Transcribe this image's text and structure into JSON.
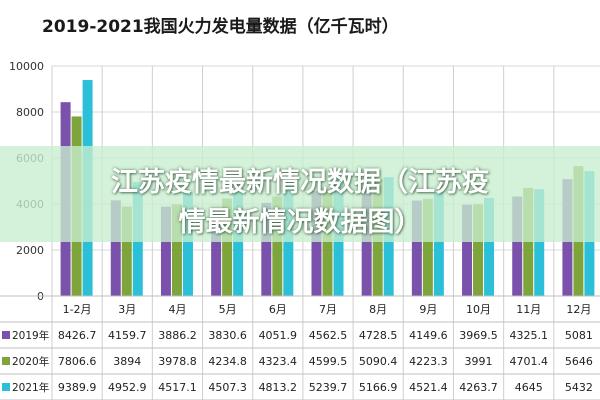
{
  "chart_data": {
    "type": "bar",
    "title": "2019-2021我国火力发电量数据（亿千瓦时）",
    "categories": [
      "1-2月",
      "3月",
      "4月",
      "5月",
      "6月",
      "7月",
      "8月",
      "9月",
      "10月",
      "11月",
      "12月"
    ],
    "series": [
      {
        "name": "2019年",
        "color": "#7b52ab",
        "values": [
          8426.7,
          4159.7,
          3886.2,
          3830.6,
          4051.9,
          4562.5,
          4728.5,
          4149.6,
          3969.5,
          4325.1,
          5081
        ]
      },
      {
        "name": "2020年",
        "color": "#7ea53c",
        "values": [
          7806.6,
          3894,
          3978.8,
          4234.8,
          4323.4,
          4599.5,
          5090.4,
          4223.3,
          3991,
          4701.4,
          5646
        ]
      },
      {
        "name": "2021年",
        "color": "#2bc0d8",
        "values": [
          9389.9,
          4952.9,
          4517.1,
          4507.3,
          4813.2,
          5239.7,
          5166.9,
          4521.4,
          4263.7,
          4645,
          5432
        ]
      }
    ],
    "table_values": [
      [
        "8426.7",
        "4159.7",
        "3886.2",
        "3830.6",
        "4051.9",
        "4562.5",
        "4728.5",
        "4149.6",
        "3969.5",
        "4325.1",
        "5081"
      ],
      [
        "7806.6",
        "3894",
        "3978.8",
        "4234.8",
        "4323.4",
        "4599.5",
        "5090.4",
        "4223.3",
        "3991",
        "4701.4",
        "5646"
      ],
      [
        "9389.9",
        "4952.9",
        "4517.1",
        "4507.3",
        "4813.2",
        "5239.7",
        "5166.9",
        "4521.4",
        "4263.7",
        "4645",
        "5432"
      ]
    ],
    "y_ticks": [
      "0",
      "2000",
      "4000",
      "6000",
      "8000",
      "10000"
    ],
    "ylim": [
      0,
      10000
    ],
    "grid": true,
    "legend": "data-table-below"
  },
  "overlay": {
    "line1": "江苏疫情最新情况数据（江苏疫",
    "line2": "情最新情况数据图）"
  }
}
